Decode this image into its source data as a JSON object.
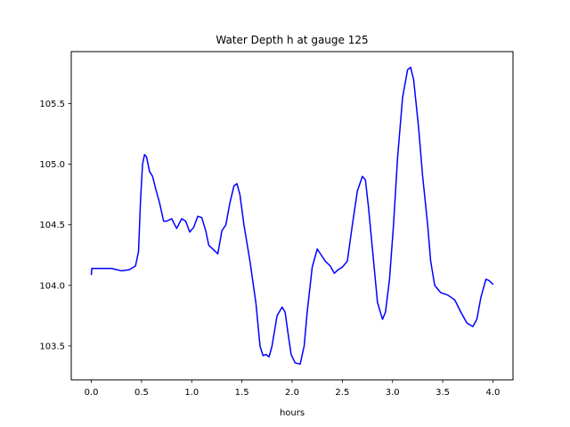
{
  "chart_data": {
    "type": "line",
    "title": "Water Depth h at gauge 125",
    "xlabel": "hours",
    "ylabel": "",
    "xlim": [
      -0.2,
      4.2
    ],
    "ylim": [
      103.22,
      105.93
    ],
    "xticks": [
      0.0,
      0.5,
      1.0,
      1.5,
      2.0,
      2.5,
      3.0,
      3.5,
      4.0
    ],
    "xtick_labels": [
      "0.0",
      "0.5",
      "1.0",
      "1.5",
      "2.0",
      "2.5",
      "3.0",
      "3.5",
      "4.0"
    ],
    "yticks": [
      103.5,
      104.0,
      104.5,
      105.0,
      105.5
    ],
    "ytick_labels": [
      "103.5",
      "104.0",
      "104.5",
      "105.0",
      "105.5"
    ],
    "grid": false,
    "series": [
      {
        "color": "#0000ff",
        "x": [
          0.0,
          0.005,
          0.05,
          0.1,
          0.2,
          0.3,
          0.38,
          0.44,
          0.47,
          0.49,
          0.51,
          0.53,
          0.55,
          0.58,
          0.61,
          0.64,
          0.68,
          0.72,
          0.75,
          0.8,
          0.85,
          0.9,
          0.94,
          0.98,
          1.02,
          1.06,
          1.1,
          1.14,
          1.17,
          1.21,
          1.26,
          1.3,
          1.34,
          1.38,
          1.42,
          1.45,
          1.48,
          1.52,
          1.58,
          1.64,
          1.68,
          1.71,
          1.74,
          1.77,
          1.8,
          1.85,
          1.9,
          1.93,
          1.96,
          1.99,
          2.03,
          2.08,
          2.12,
          2.15,
          2.2,
          2.25,
          2.29,
          2.33,
          2.38,
          2.42,
          2.46,
          2.5,
          2.55,
          2.6,
          2.65,
          2.7,
          2.73,
          2.76,
          2.8,
          2.85,
          2.9,
          2.93,
          2.97,
          3.01,
          3.05,
          3.1,
          3.15,
          3.18,
          3.21,
          3.26,
          3.3,
          3.35,
          3.38,
          3.42,
          3.48,
          3.55,
          3.62,
          3.68,
          3.74,
          3.8,
          3.84,
          3.88,
          3.93,
          3.96,
          4.0
        ],
        "y": [
          104.09,
          104.14,
          104.14,
          104.14,
          104.14,
          104.12,
          104.13,
          104.16,
          104.28,
          104.7,
          105.0,
          105.08,
          105.06,
          104.94,
          104.9,
          104.8,
          104.68,
          104.53,
          104.53,
          104.55,
          104.47,
          104.55,
          104.53,
          104.44,
          104.48,
          104.57,
          104.56,
          104.45,
          104.33,
          104.3,
          104.26,
          104.45,
          104.5,
          104.68,
          104.82,
          104.84,
          104.75,
          104.5,
          104.2,
          103.85,
          103.5,
          103.42,
          103.43,
          103.41,
          103.5,
          103.75,
          103.82,
          103.78,
          103.6,
          103.43,
          103.36,
          103.35,
          103.5,
          103.78,
          104.15,
          104.3,
          104.25,
          104.2,
          104.16,
          104.1,
          104.13,
          104.15,
          104.2,
          104.5,
          104.78,
          104.9,
          104.87,
          104.65,
          104.3,
          103.86,
          103.72,
          103.78,
          104.05,
          104.5,
          105.05,
          105.55,
          105.78,
          105.8,
          105.7,
          105.3,
          104.9,
          104.5,
          104.2,
          104.0,
          103.94,
          103.92,
          103.88,
          103.78,
          103.69,
          103.66,
          103.72,
          103.9,
          104.05,
          104.04,
          104.01
        ]
      }
    ]
  }
}
